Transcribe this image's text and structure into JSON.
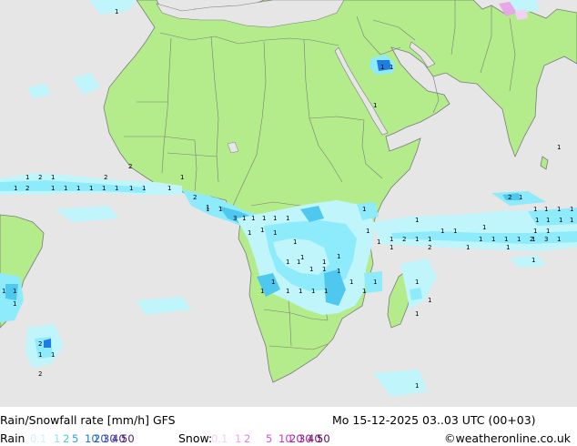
{
  "title": "Rain/Snowfall rate [mm/h] GFS",
  "datetime": "Mo 15-12-2025 03..03 UTC (00+03)",
  "credit": "©weatheronline.co.uk",
  "colors": {
    "ocean": "#e6e6e6",
    "land": "#b4ec8c",
    "border": "#7b7b7b",
    "rain_light": "#bff5fb",
    "rain_mid": "#8eebfb",
    "rain_heavy": "#4fc8ef",
    "rain_strong": "#1e7de0"
  },
  "legend": {
    "rain_label": "Rain",
    "rain_items": [
      {
        "text": "0.1",
        "color": "#c9f2fb"
      },
      {
        "text": "1",
        "color": "#8fe3f5"
      },
      {
        "text": "2",
        "color": "#3fcbe9"
      },
      {
        "text": "5",
        "color": "#1aa8e0"
      },
      {
        "text": "10",
        "color": "#1678d8"
      },
      {
        "text": "20",
        "color": "#2355c9"
      },
      {
        "text": "30",
        "color": "#2f3ab0"
      },
      {
        "text": "40",
        "color": "#3b2490"
      },
      {
        "text": "50",
        "color": "#4a1470"
      }
    ],
    "snow_label": "Snow:",
    "snow_items": [
      {
        "text": "0.1",
        "color": "#f2d2f2"
      },
      {
        "text": "1",
        "color": "#e8a8e8"
      },
      {
        "text": "2",
        "color": "#dd82dd"
      },
      {
        "text": "5",
        "color": "#d056d0"
      },
      {
        "text": "10",
        "color": "#c238c2"
      },
      {
        "text": "20",
        "color": "#a81ea8"
      },
      {
        "text": "30",
        "color": "#8c148c"
      },
      {
        "text": "40",
        "color": "#700c70"
      },
      {
        "text": "50",
        "color": "#540654"
      }
    ]
  },
  "rain_labels": [
    "1",
    "1",
    "2",
    "1",
    "1",
    "2",
    "1",
    "1",
    "1",
    "1",
    "1",
    "1",
    "2",
    "1",
    "1",
    "1",
    "2",
    "1",
    "2",
    "1",
    "1",
    "3",
    "1",
    "1",
    "1",
    "1",
    "1",
    "1",
    "1",
    "1",
    "1",
    "1",
    "1",
    "1",
    "1",
    "1",
    "1",
    "1",
    "1",
    "1",
    "1",
    "1",
    "1",
    "1",
    "1",
    "1",
    "1",
    "1",
    "1",
    "2",
    "1",
    "1",
    "1",
    "1",
    "1",
    "1",
    "1",
    "1",
    "1",
    "1",
    "1",
    "1",
    "1",
    "1",
    "2",
    "1",
    "1",
    "1",
    "1",
    "1",
    "1",
    "1",
    "1",
    "1",
    "3",
    "2",
    "1",
    "2",
    "1",
    "1",
    "1",
    "1",
    "1",
    "1",
    "1",
    "1",
    "1",
    "2",
    "1",
    "1",
    "2",
    "1",
    "1",
    "1",
    "1",
    "1",
    "1",
    "1",
    "1",
    "1"
  ]
}
